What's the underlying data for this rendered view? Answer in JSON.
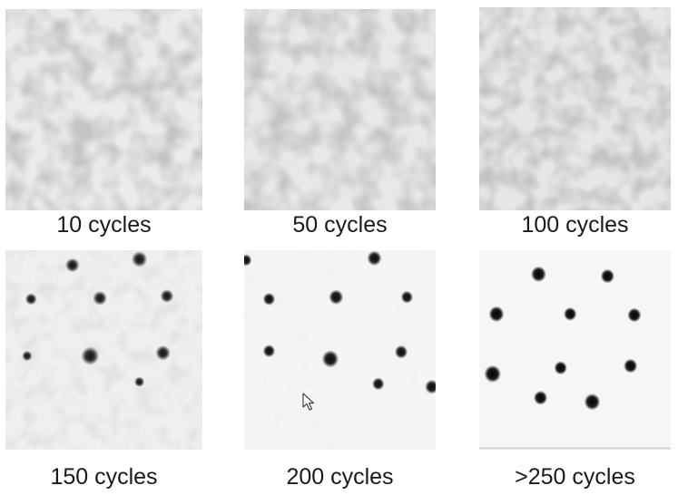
{
  "panels": [
    {
      "caption": "10 cycles",
      "texture": "noisy"
    },
    {
      "caption": "50 cycles",
      "texture": "noisy"
    },
    {
      "caption": "100 cycles",
      "texture": "noisy"
    },
    {
      "caption": "150 cycles",
      "texture": "spots"
    },
    {
      "caption": "200 cycles",
      "texture": "spots"
    },
    {
      "caption": ">250 cycles",
      "texture": "sharp-spots"
    }
  ],
  "colors": {
    "background": "#ffffff",
    "noise_light": "#e6e6e6",
    "noise_dark": "#8a8a8a",
    "spot": "#111111"
  },
  "icons": {
    "cursor": "mouse-pointer-icon"
  }
}
